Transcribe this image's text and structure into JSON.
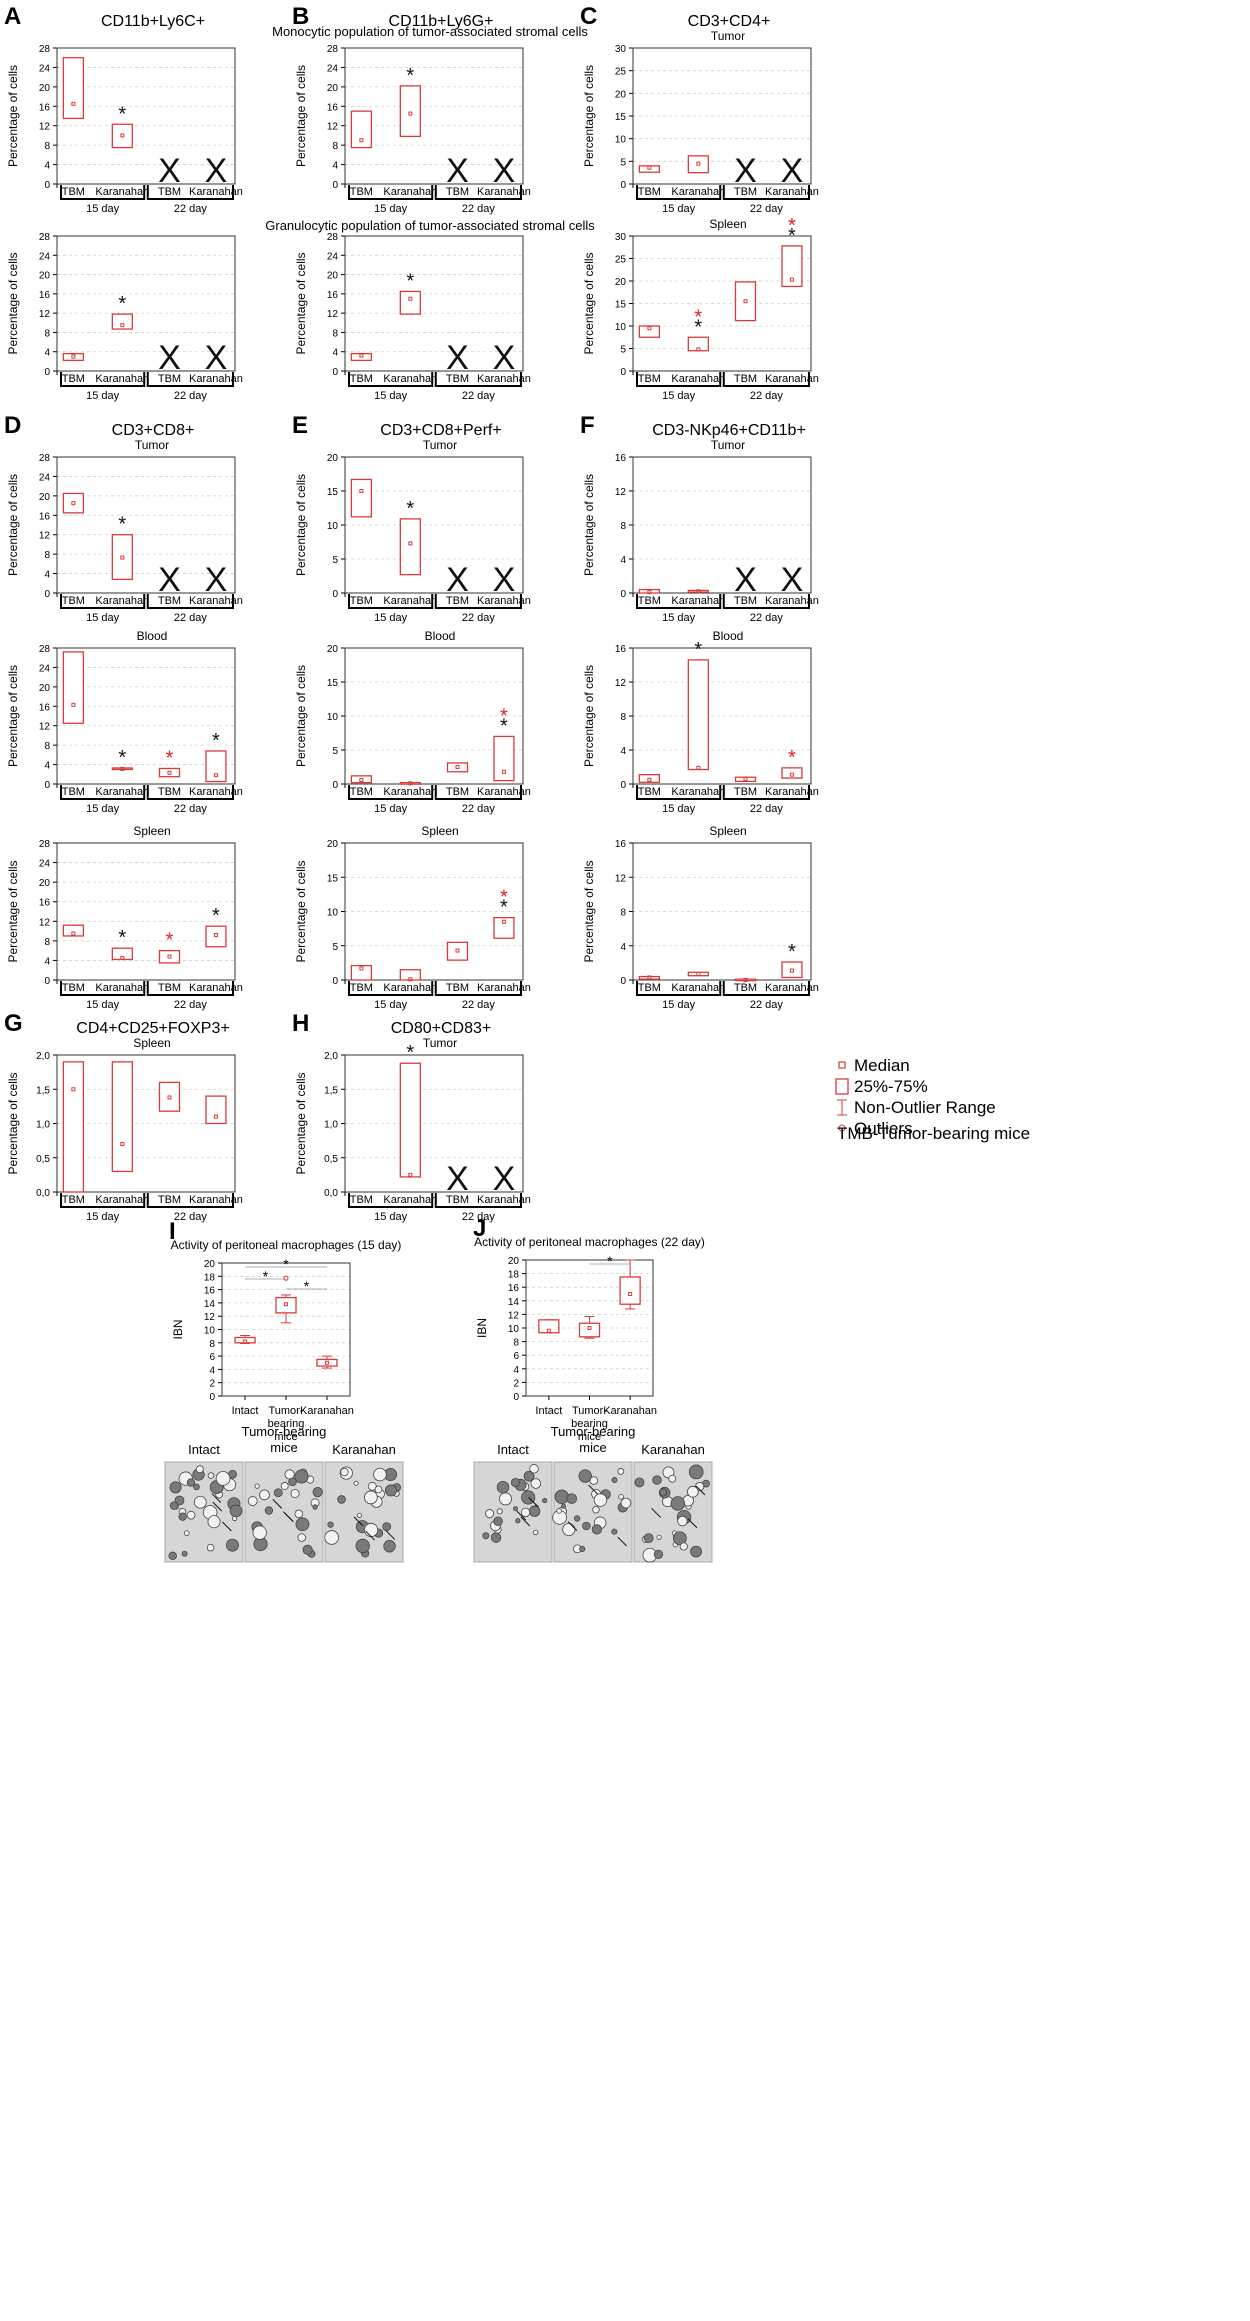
{
  "figure": {
    "box_color": "#d93b3b",
    "star_colors": {
      "black": "#111111",
      "red": "#e0201f"
    },
    "legend": {
      "items": [
        {
          "icon": "median-square-icon",
          "label": "Median"
        },
        {
          "icon": "box-rect-icon",
          "label": "25%-75%"
        },
        {
          "icon": "whisker-icon",
          "label": "Non-Outlier Range"
        },
        {
          "icon": "outlier-circle-icon",
          "label": "Outliers"
        }
      ],
      "note": "TMB-Tumor-bearing mice"
    }
  },
  "chart_data": [
    {
      "id": "A-top",
      "type": "box",
      "panel_letter": "A",
      "title": "CD11b+Ly6C+",
      "subtitle": "Monocytic population of tumor-associated stromal cells",
      "ylabel": "Percentage of cells",
      "ylim": [
        0,
        28
      ],
      "yticks": [
        "0",
        "4",
        "8",
        "12",
        "16",
        "20",
        "24",
        "28"
      ],
      "x": [
        "TBM",
        "Karanahan",
        "TBM",
        "Karanahan"
      ],
      "groups": [
        "15 day",
        "22 day"
      ],
      "boxes": [
        {
          "q1": 13.5,
          "q3": 26,
          "median": 16.5,
          "star": ""
        },
        {
          "q1": 7.5,
          "q3": 12.3,
          "median": 10,
          "star": "black"
        },
        {
          "missing": true
        },
        {
          "missing": true
        }
      ]
    },
    {
      "id": "B-top",
      "type": "box",
      "panel_letter": "B",
      "title": "CD11b+Ly6G+",
      "subtitle": "",
      "ylabel": "Percentage of cells",
      "ylim": [
        0,
        28
      ],
      "yticks": [
        "0",
        "4",
        "8",
        "12",
        "16",
        "20",
        "24",
        "28"
      ],
      "x": [
        "TBM",
        "Karanahan",
        "TBM",
        "Karanahan"
      ],
      "groups": [
        "15 day",
        "22 day"
      ],
      "boxes": [
        {
          "q1": 7.5,
          "q3": 15,
          "median": 9,
          "star": ""
        },
        {
          "q1": 9.8,
          "q3": 20.2,
          "median": 14.5,
          "star": "black"
        },
        {
          "missing": true
        },
        {
          "missing": true
        }
      ]
    },
    {
      "id": "C-top",
      "type": "box",
      "panel_letter": "C",
      "title": "CD3+CD4+",
      "subtitle": "Tumor",
      "ylabel": "Percentage of cells",
      "ylim": [
        0,
        30
      ],
      "yticks": [
        "0",
        "5",
        "10",
        "15",
        "20",
        "25",
        "30"
      ],
      "x": [
        "TBM",
        "Karanahan",
        "TBM",
        "Karanahan"
      ],
      "groups": [
        "15 day",
        "22 day"
      ],
      "boxes": [
        {
          "q1": 2.6,
          "q3": 4,
          "median": 3.6,
          "star": ""
        },
        {
          "q1": 2.5,
          "q3": 6.2,
          "median": 4.5,
          "star": ""
        },
        {
          "missing": true
        },
        {
          "missing": true
        }
      ]
    },
    {
      "id": "A-bottom",
      "type": "box",
      "panel_letter": "",
      "title": "",
      "subtitle": "Granulocytic population of tumor-associated stromal cells",
      "ylabel": "Percentage of cells",
      "ylim": [
        0,
        28
      ],
      "yticks": [
        "0",
        "4",
        "8",
        "12",
        "16",
        "20",
        "24",
        "28"
      ],
      "x": [
        "TBM",
        "Karanahan",
        "TBM",
        "Karanahan"
      ],
      "groups": [
        "15 day",
        "22 day"
      ],
      "boxes": [
        {
          "q1": 2.2,
          "q3": 3.6,
          "median": 3,
          "star": ""
        },
        {
          "q1": 8.7,
          "q3": 11.8,
          "median": 9.5,
          "star": "black"
        },
        {
          "missing": true
        },
        {
          "missing": true
        }
      ]
    },
    {
      "id": "B-bottom",
      "type": "box",
      "panel_letter": "",
      "title": "",
      "subtitle": "",
      "ylabel": "Percentage of cells",
      "ylim": [
        0,
        28
      ],
      "yticks": [
        "0",
        "4",
        "8",
        "12",
        "16",
        "20",
        "24",
        "28"
      ],
      "x": [
        "TBM",
        "Karanahan",
        "TBM",
        "Karanahan"
      ],
      "groups": [
        "15 day",
        "22 day"
      ],
      "boxes": [
        {
          "q1": 2.2,
          "q3": 3.6,
          "median": 3.2,
          "star": ""
        },
        {
          "q1": 11.8,
          "q3": 16.5,
          "median": 15,
          "star": "black"
        },
        {
          "missing": true
        },
        {
          "missing": true
        }
      ]
    },
    {
      "id": "C-bottom",
      "type": "box",
      "panel_letter": "",
      "title": "",
      "subtitle": "Spleen",
      "ylabel": "Percentage of cells",
      "ylim": [
        0,
        30
      ],
      "yticks": [
        "0",
        "5",
        "10",
        "15",
        "20",
        "25",
        "30"
      ],
      "x": [
        "TBM",
        "Karanahan",
        "TBM",
        "Karanahan"
      ],
      "groups": [
        "15 day",
        "22 day"
      ],
      "boxes": [
        {
          "q1": 7.5,
          "q3": 10,
          "median": 9.5,
          "star": ""
        },
        {
          "q1": 4.5,
          "q3": 7.5,
          "median": 4.8,
          "star": "both"
        },
        {
          "q1": 11.2,
          "q3": 19.8,
          "median": 15.5,
          "star": ""
        },
        {
          "q1": 18.8,
          "q3": 27.8,
          "median": 20.3,
          "star": "both"
        }
      ]
    },
    {
      "id": "D-tumor",
      "type": "box",
      "panel_letter": "D",
      "title": "CD3+CD8+",
      "subtitle": "Tumor",
      "ylabel": "Percentage of cells",
      "ylim": [
        0,
        28
      ],
      "yticks": [
        "0",
        "4",
        "8",
        "12",
        "16",
        "20",
        "24",
        "28"
      ],
      "x": [
        "TBM",
        "Karanahan",
        "TBM",
        "Karanahan"
      ],
      "groups": [
        "15 day",
        "22 day"
      ],
      "boxes": [
        {
          "q1": 16.5,
          "q3": 20.5,
          "median": 18.5,
          "star": ""
        },
        {
          "q1": 2.8,
          "q3": 12,
          "median": 7.3,
          "star": "black"
        },
        {
          "missing": true
        },
        {
          "missing": true
        }
      ]
    },
    {
      "id": "E-tumor",
      "type": "box",
      "panel_letter": "E",
      "title": "CD3+CD8+Perf+",
      "subtitle": "Tumor",
      "ylabel": "Percentage of cells",
      "ylim": [
        0,
        20
      ],
      "yticks": [
        "0",
        "5",
        "10",
        "15",
        "20"
      ],
      "x": [
        "TBM",
        "Karanahan",
        "TBM",
        "Karanahan"
      ],
      "groups": [
        "15 day",
        "22 day"
      ],
      "boxes": [
        {
          "q1": 11.2,
          "q3": 16.7,
          "median": 15,
          "star": ""
        },
        {
          "q1": 2.7,
          "q3": 10.9,
          "median": 7.3,
          "star": "black"
        },
        {
          "missing": true
        },
        {
          "missing": true
        }
      ]
    },
    {
      "id": "F-tumor",
      "type": "box",
      "panel_letter": "F",
      "title": "CD3-NKp46+CD11b+",
      "subtitle": "Tumor",
      "ylabel": "Percentage of cells",
      "ylim": [
        0,
        16
      ],
      "yticks": [
        "0",
        "4",
        "8",
        "12",
        "16"
      ],
      "x": [
        "TBM",
        "Karanahan",
        "TBM",
        "Karanahan"
      ],
      "groups": [
        "15 day",
        "22 day"
      ],
      "boxes": [
        {
          "q1": 0,
          "q3": 0.4,
          "median": 0.1,
          "star": ""
        },
        {
          "q1": 0.1,
          "q3": 0.3,
          "median": 0.2,
          "star": ""
        },
        {
          "missing": true
        },
        {
          "missing": true
        }
      ]
    },
    {
      "id": "D-blood",
      "type": "box",
      "panel_letter": "",
      "title": "",
      "subtitle": "Blood",
      "ylabel": "Percentage of cells",
      "ylim": [
        0,
        28
      ],
      "yticks": [
        "0",
        "4",
        "8",
        "12",
        "16",
        "20",
        "24",
        "28"
      ],
      "x": [
        "TBM",
        "Karanahan",
        "TBM",
        "Karanahan"
      ],
      "groups": [
        "15 day",
        "22 day"
      ],
      "boxes": [
        {
          "q1": 12.5,
          "q3": 27.2,
          "median": 16.3,
          "star": ""
        },
        {
          "q1": 3,
          "q3": 3.3,
          "median": 3.1,
          "star": "black"
        },
        {
          "q1": 1.5,
          "q3": 3.2,
          "median": 2.3,
          "star": "red"
        },
        {
          "q1": 0.5,
          "q3": 6.8,
          "median": 1.8,
          "star": "black"
        }
      ]
    },
    {
      "id": "E-blood",
      "type": "box",
      "panel_letter": "",
      "title": "",
      "subtitle": "Blood",
      "ylabel": "Percentage of cells",
      "ylim": [
        0,
        20
      ],
      "yticks": [
        "0",
        "5",
        "10",
        "15",
        "20"
      ],
      "x": [
        "TBM",
        "Karanahan",
        "TBM",
        "Karanahan"
      ],
      "groups": [
        "15 day",
        "22 day"
      ],
      "boxes": [
        {
          "q1": 0.2,
          "q3": 1.2,
          "median": 0.6,
          "star": ""
        },
        {
          "q1": 0,
          "q3": 0.2,
          "median": 0.1,
          "star": ""
        },
        {
          "q1": 1.8,
          "q3": 3.1,
          "median": 2.5,
          "star": ""
        },
        {
          "q1": 0.5,
          "q3": 7,
          "median": 1.8,
          "star": "both"
        }
      ]
    },
    {
      "id": "F-blood",
      "type": "box",
      "panel_letter": "",
      "title": "",
      "subtitle": "Blood",
      "ylabel": "Percentage of cells",
      "ylim": [
        0,
        16
      ],
      "yticks": [
        "0",
        "4",
        "8",
        "12",
        "16"
      ],
      "x": [
        "TBM",
        "Karanahan",
        "TBM",
        "Karanahan"
      ],
      "groups": [
        "15 day",
        "22 day"
      ],
      "boxes": [
        {
          "q1": 0.2,
          "q3": 1.1,
          "median": 0.5,
          "star": ""
        },
        {
          "q1": 1.7,
          "q3": 14.6,
          "median": 1.9,
          "star": "black"
        },
        {
          "q1": 0.3,
          "q3": 0.8,
          "median": 0.6,
          "star": ""
        },
        {
          "q1": 0.7,
          "q3": 1.9,
          "median": 1.1,
          "star": "red"
        }
      ]
    },
    {
      "id": "D-spleen",
      "type": "box",
      "panel_letter": "",
      "title": "",
      "subtitle": "Spleen",
      "ylabel": "Percentage of cells",
      "ylim": [
        0,
        28
      ],
      "yticks": [
        "0",
        "4",
        "8",
        "12",
        "16",
        "20",
        "24",
        "28"
      ],
      "x": [
        "TBM",
        "Karanahan",
        "TBM",
        "Karanahan"
      ],
      "groups": [
        "15 day",
        "22 day"
      ],
      "boxes": [
        {
          "q1": 9,
          "q3": 11.2,
          "median": 9.5,
          "star": ""
        },
        {
          "q1": 4.2,
          "q3": 6.5,
          "median": 4.5,
          "star": "black"
        },
        {
          "q1": 3.5,
          "q3": 6,
          "median": 4.8,
          "star": "red"
        },
        {
          "q1": 6.8,
          "q3": 11,
          "median": 9.2,
          "star": "black"
        }
      ]
    },
    {
      "id": "E-spleen",
      "type": "box",
      "panel_letter": "",
      "title": "",
      "subtitle": "Spleen",
      "ylabel": "Percentage of cells",
      "ylim": [
        0,
        20
      ],
      "yticks": [
        "0",
        "5",
        "10",
        "15",
        "20"
      ],
      "x": [
        "TBM",
        "Karanahan",
        "TBM",
        "Karanahan"
      ],
      "groups": [
        "15 day",
        "22 day"
      ],
      "boxes": [
        {
          "q1": 0,
          "q3": 2.1,
          "median": 1.7,
          "star": ""
        },
        {
          "q1": 0,
          "q3": 1.5,
          "median": 0.1,
          "star": ""
        },
        {
          "q1": 2.9,
          "q3": 5.5,
          "median": 4.3,
          "star": ""
        },
        {
          "q1": 6.1,
          "q3": 9.1,
          "median": 8.5,
          "star": "both"
        }
      ]
    },
    {
      "id": "F-spleen",
      "type": "box",
      "panel_letter": "",
      "title": "",
      "subtitle": "Spleen",
      "ylabel": "Percentage of cells",
      "ylim": [
        0,
        16
      ],
      "yticks": [
        "0",
        "4",
        "8",
        "12",
        "16"
      ],
      "x": [
        "TBM",
        "Karanahan",
        "TBM",
        "Karanahan"
      ],
      "groups": [
        "15 day",
        "22 day"
      ],
      "boxes": [
        {
          "q1": 0.1,
          "q3": 0.4,
          "median": 0.3,
          "star": ""
        },
        {
          "q1": 0.5,
          "q3": 0.9,
          "median": 0.7,
          "star": ""
        },
        {
          "q1": 0,
          "q3": 0.1,
          "median": 0,
          "star": ""
        },
        {
          "q1": 0.3,
          "q3": 2.1,
          "median": 1.1,
          "star": "black"
        }
      ]
    },
    {
      "id": "G",
      "type": "box",
      "panel_letter": "G",
      "title": "CD4+CD25+FOXP3+",
      "subtitle": "Spleen",
      "ylabel": "Percentage of cells",
      "ylim": [
        0,
        2
      ],
      "yticks": [
        "0,0",
        "0,5",
        "1,0",
        "1,5",
        "2,0"
      ],
      "x": [
        "TBM",
        "Karanahan",
        "TBM",
        "Karanahan"
      ],
      "groups": [
        "15 day",
        "22 day"
      ],
      "boxes": [
        {
          "q1": 0,
          "q3": 1.9,
          "median": 1.5,
          "star": ""
        },
        {
          "q1": 0.3,
          "q3": 1.9,
          "median": 0.7,
          "star": ""
        },
        {
          "q1": 1.18,
          "q3": 1.6,
          "median": 1.38,
          "star": ""
        },
        {
          "q1": 1,
          "q3": 1.4,
          "median": 1.1,
          "star": ""
        }
      ]
    },
    {
      "id": "H",
      "type": "box",
      "panel_letter": "H",
      "title": "CD80+CD83+",
      "subtitle": "Tumor",
      "ylabel": "Percentage of cells",
      "ylim": [
        0,
        2
      ],
      "yticks": [
        "0,0",
        "0,5",
        "1,0",
        "1,5",
        "2,0"
      ],
      "x": [
        "TBM",
        "Karanahan",
        "TBM",
        "Karanahan"
      ],
      "groups": [
        "15 day",
        "22 day"
      ],
      "boxes": [
        {
          "q1": 0,
          "q3": 0,
          "median": 0,
          "star": ""
        },
        {
          "q1": 0.22,
          "q3": 1.88,
          "median": 0.25,
          "star": "black"
        },
        {
          "missing": true
        },
        {
          "missing": true
        }
      ]
    },
    {
      "id": "I",
      "type": "box",
      "panel_letter": "I",
      "title": "Activity of peritoneal macrophages (15 day)",
      "subtitle": "",
      "ylabel": "IBN",
      "ylim": [
        0,
        20
      ],
      "yticks": [
        "0",
        "2",
        "4",
        "6",
        "8",
        "10",
        "12",
        "14",
        "16",
        "18",
        "20"
      ],
      "x": [
        "Intact",
        "Tumor-bearing mice",
        "Karanahan"
      ],
      "boxes": [
        {
          "q1": 8,
          "q3": 8.8,
          "median": 8.2,
          "wlo": 7.9,
          "whi": 9.1
        },
        {
          "q1": 12.5,
          "q3": 14.8,
          "median": 13.8,
          "wlo": 11,
          "whi": 15.2,
          "outlier": 17.7
        },
        {
          "q1": 4.5,
          "q3": 5.5,
          "median": 5,
          "wlo": 4.2,
          "whi": 6
        }
      ],
      "brackets": [
        {
          "from": 0,
          "to": 2,
          "label": "*"
        },
        {
          "from": 0,
          "to": 1,
          "label": "*"
        },
        {
          "from": 1,
          "to": 2,
          "label": "*"
        }
      ]
    },
    {
      "id": "J",
      "type": "box",
      "panel_letter": "J",
      "title": "Activity of peritoneal macrophages (22 day)",
      "subtitle": "",
      "ylabel": "IBN",
      "ylim": [
        0,
        20
      ],
      "yticks": [
        "0",
        "2",
        "4",
        "6",
        "8",
        "10",
        "12",
        "14",
        "16",
        "18",
        "20"
      ],
      "x": [
        "Intact",
        "Tumor-bearing mice",
        "Karanahan"
      ],
      "boxes": [
        {
          "q1": 9.3,
          "q3": 11.2,
          "median": 9.6,
          "wlo": 9.3,
          "whi": 11.2
        },
        {
          "q1": 8.7,
          "q3": 10.7,
          "median": 10,
          "wlo": 8.5,
          "whi": 11.7
        },
        {
          "q1": 13.5,
          "q3": 17.5,
          "median": 15,
          "wlo": 12.8,
          "whi": 20
        }
      ],
      "brackets": [
        {
          "from": 1,
          "to": 2,
          "label": "*"
        }
      ]
    }
  ],
  "micrographs": [
    {
      "id": "I-images",
      "labels": [
        "Intact",
        "Tumor-bearing mice",
        "Karanahan"
      ]
    },
    {
      "id": "J-images",
      "labels": [
        "Intact",
        "Tumor-bearing mice",
        "Karanahan"
      ]
    }
  ]
}
